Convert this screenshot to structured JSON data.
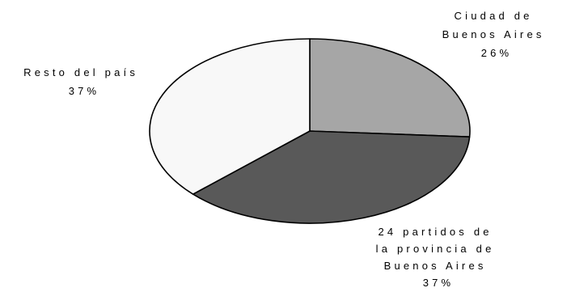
{
  "chart_data": {
    "type": "pie",
    "title": "",
    "slices": [
      {
        "name_lines": [
          "Ciudad de",
          "Buenos Aires"
        ],
        "percent_label": "26%",
        "value": 26,
        "color": "#a6a6a6"
      },
      {
        "name_lines": [
          "24 partidos de",
          "la provincia de",
          "Buenos Aires"
        ],
        "percent_label": "37%",
        "value": 37,
        "color": "#595959"
      },
      {
        "name_lines": [
          "Resto del país"
        ],
        "percent_label": "37%",
        "value": 37,
        "color": "#f8f8f8"
      }
    ],
    "start_angle_deg": 90,
    "direction": "clockwise",
    "style": "3d-tilted-pie",
    "outline_color": "#000000"
  }
}
